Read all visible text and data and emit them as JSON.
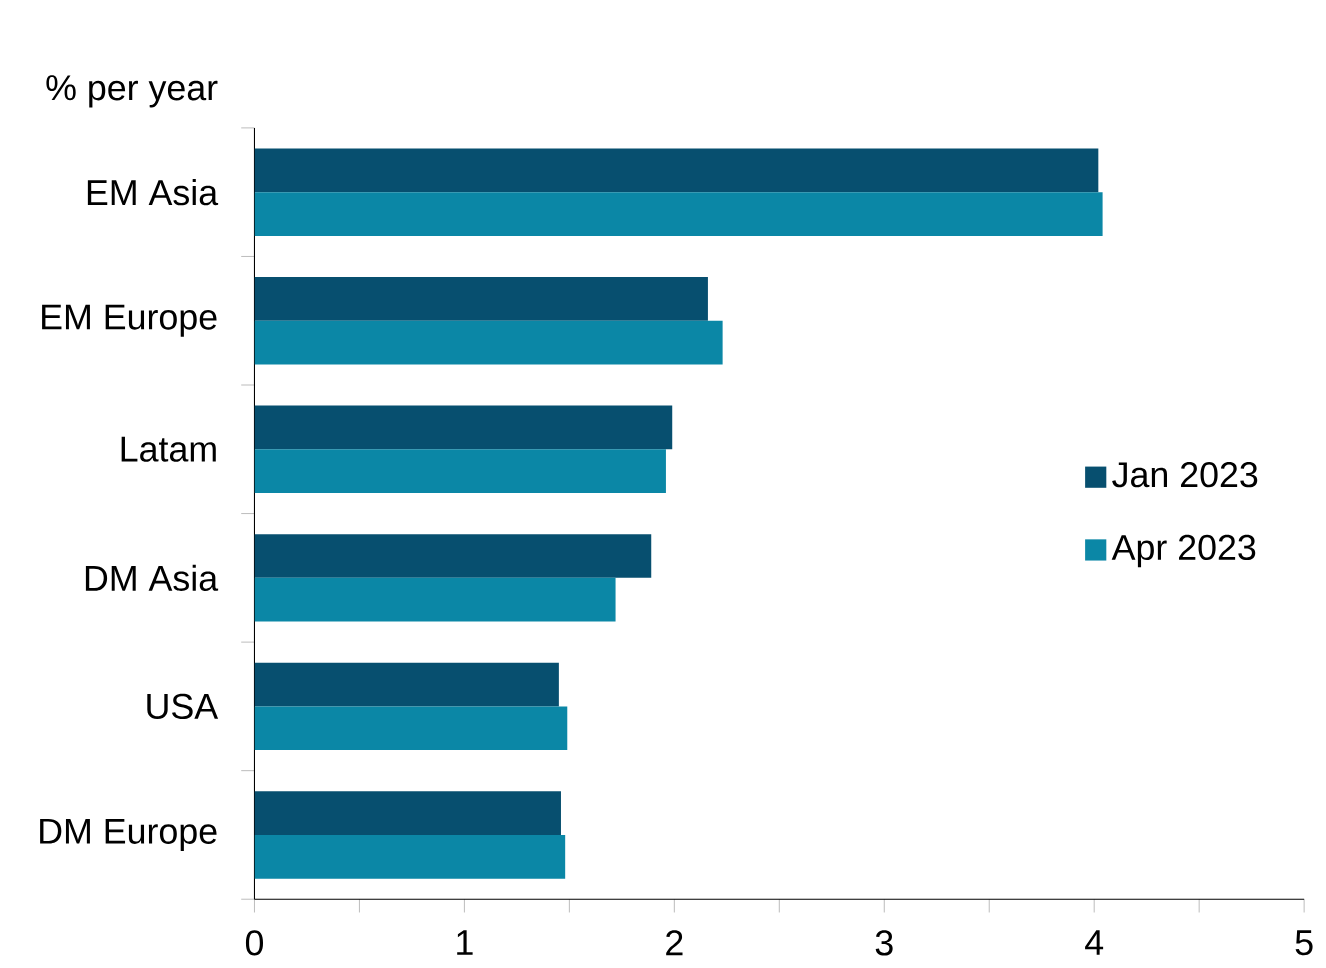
{
  "chart_data": {
    "type": "bar",
    "orientation": "horizontal",
    "ylabel": "% per year",
    "categories": [
      "EM Asia",
      "EM Europe",
      "Latam",
      "DM Asia",
      "USA",
      "DM Europe"
    ],
    "series": [
      {
        "name": "Jan 2023",
        "color": "#074f6f",
        "values": [
          4.02,
          2.16,
          1.99,
          1.89,
          1.45,
          1.46
        ]
      },
      {
        "name": "Apr 2023",
        "color": "#0b87a6",
        "values": [
          4.04,
          2.23,
          1.96,
          1.72,
          1.49,
          1.48
        ]
      }
    ],
    "xlim": [
      0,
      5
    ],
    "xticks": [
      0,
      {
        "value": 0.5,
        "label": null
      },
      1,
      {
        "value": 1.5,
        "label": null
      },
      2,
      {
        "value": 2.5,
        "label": null
      },
      3,
      {
        "value": 3.5,
        "label": null
      },
      4,
      {
        "value": 4.5,
        "label": null
      },
      5
    ],
    "grid": false,
    "legend": "right"
  }
}
